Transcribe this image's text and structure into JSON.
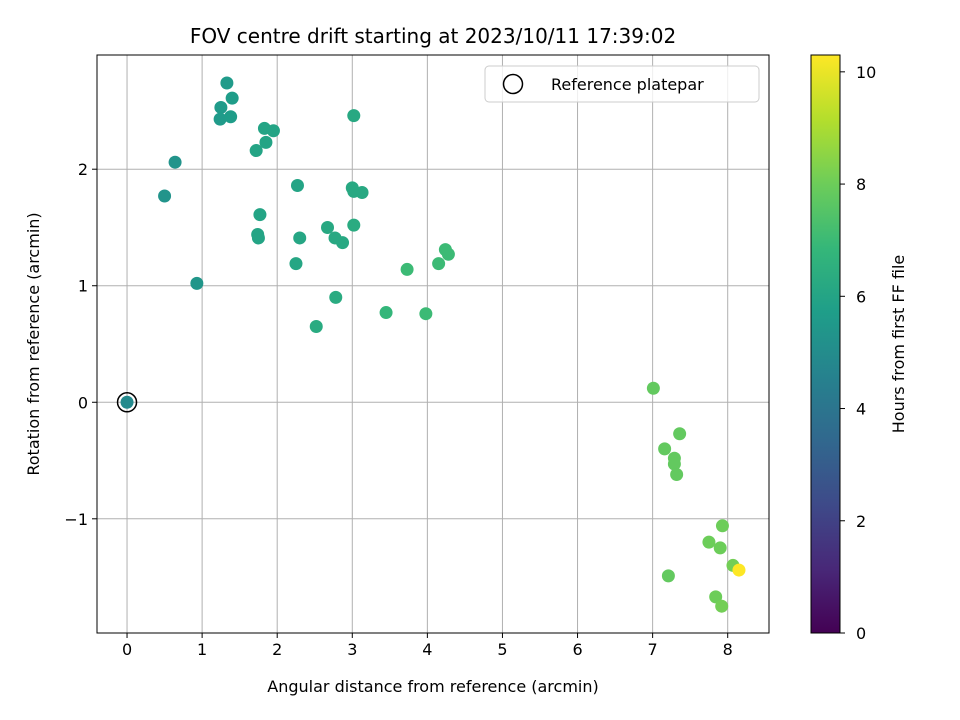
{
  "chart_data": {
    "type": "scatter",
    "title": "FOV centre drift starting at 2023/10/11 17:39:02",
    "xlabel": "Angular distance from reference (arcmin)",
    "ylabel": "Rotation from reference (arcmin)",
    "xlim": [
      -0.4,
      8.55
    ],
    "ylim": [
      -1.98,
      2.98
    ],
    "xticks": [
      0,
      1,
      2,
      3,
      4,
      5,
      6,
      7,
      8
    ],
    "xtick_labels": [
      "0",
      "1",
      "2",
      "3",
      "4",
      "5",
      "6",
      "7",
      "8"
    ],
    "yticks": [
      -1,
      0,
      1,
      2
    ],
    "ytick_labels": [
      "−1",
      "0",
      "1",
      "2"
    ],
    "grid": true,
    "colorbar": {
      "label": "Hours from first FF file",
      "colormap": "viridis",
      "range": [
        0,
        10.3
      ],
      "ticks": [
        0,
        2,
        4,
        6,
        8,
        10
      ],
      "tick_labels": [
        "0",
        "2",
        "4",
        "6",
        "8",
        "10"
      ]
    },
    "legend": {
      "position": "top-right",
      "entries": [
        {
          "label": "Reference platepar",
          "marker": "open-circle"
        }
      ]
    },
    "reference_point": {
      "x": 0.0,
      "y": 0.0
    },
    "points": [
      {
        "x": 0.0,
        "y": 0.0,
        "c": 4.9
      },
      {
        "x": 1.33,
        "y": 2.74,
        "c": 5.6
      },
      {
        "x": 1.4,
        "y": 2.61,
        "c": 5.7
      },
      {
        "x": 1.25,
        "y": 2.53,
        "c": 5.6
      },
      {
        "x": 1.24,
        "y": 2.43,
        "c": 5.6
      },
      {
        "x": 1.38,
        "y": 2.45,
        "c": 5.7
      },
      {
        "x": 0.64,
        "y": 2.06,
        "c": 5.3
      },
      {
        "x": 0.5,
        "y": 1.77,
        "c": 5.3
      },
      {
        "x": 0.93,
        "y": 1.02,
        "c": 5.4
      },
      {
        "x": 1.83,
        "y": 2.35,
        "c": 6.0
      },
      {
        "x": 1.95,
        "y": 2.33,
        "c": 6.0
      },
      {
        "x": 1.85,
        "y": 2.23,
        "c": 6.0
      },
      {
        "x": 1.72,
        "y": 2.16,
        "c": 6.0
      },
      {
        "x": 3.02,
        "y": 2.46,
        "c": 6.2
      },
      {
        "x": 2.27,
        "y": 1.86,
        "c": 6.0
      },
      {
        "x": 3.0,
        "y": 1.84,
        "c": 6.2
      },
      {
        "x": 3.02,
        "y": 1.81,
        "c": 6.2
      },
      {
        "x": 3.13,
        "y": 1.8,
        "c": 6.2
      },
      {
        "x": 1.77,
        "y": 1.61,
        "c": 6.0
      },
      {
        "x": 1.74,
        "y": 1.44,
        "c": 6.0
      },
      {
        "x": 1.75,
        "y": 1.41,
        "c": 6.0
      },
      {
        "x": 2.3,
        "y": 1.41,
        "c": 6.1
      },
      {
        "x": 2.67,
        "y": 1.5,
        "c": 6.2
      },
      {
        "x": 2.77,
        "y": 1.41,
        "c": 6.2
      },
      {
        "x": 2.87,
        "y": 1.37,
        "c": 6.2
      },
      {
        "x": 3.02,
        "y": 1.52,
        "c": 6.3
      },
      {
        "x": 2.25,
        "y": 1.19,
        "c": 6.1
      },
      {
        "x": 2.78,
        "y": 0.9,
        "c": 6.3
      },
      {
        "x": 2.52,
        "y": 0.65,
        "c": 6.3
      },
      {
        "x": 3.45,
        "y": 0.77,
        "c": 6.8
      },
      {
        "x": 3.73,
        "y": 1.14,
        "c": 7.0
      },
      {
        "x": 3.98,
        "y": 0.76,
        "c": 7.0
      },
      {
        "x": 4.15,
        "y": 1.19,
        "c": 7.0
      },
      {
        "x": 4.24,
        "y": 1.31,
        "c": 7.0
      },
      {
        "x": 4.28,
        "y": 1.27,
        "c": 7.0
      },
      {
        "x": 7.01,
        "y": 0.12,
        "c": 7.8
      },
      {
        "x": 7.16,
        "y": -0.4,
        "c": 7.8
      },
      {
        "x": 7.36,
        "y": -0.27,
        "c": 7.8
      },
      {
        "x": 7.29,
        "y": -0.48,
        "c": 7.8
      },
      {
        "x": 7.29,
        "y": -0.53,
        "c": 7.8
      },
      {
        "x": 7.32,
        "y": -0.62,
        "c": 7.8
      },
      {
        "x": 7.93,
        "y": -1.06,
        "c": 8.0
      },
      {
        "x": 7.75,
        "y": -1.2,
        "c": 8.0
      },
      {
        "x": 7.9,
        "y": -1.25,
        "c": 8.0
      },
      {
        "x": 8.07,
        "y": -1.4,
        "c": 8.1
      },
      {
        "x": 7.21,
        "y": -1.49,
        "c": 7.8
      },
      {
        "x": 7.84,
        "y": -1.67,
        "c": 8.0
      },
      {
        "x": 7.92,
        "y": -1.75,
        "c": 8.1
      },
      {
        "x": 8.15,
        "y": -1.44,
        "c": 10.3
      }
    ]
  }
}
